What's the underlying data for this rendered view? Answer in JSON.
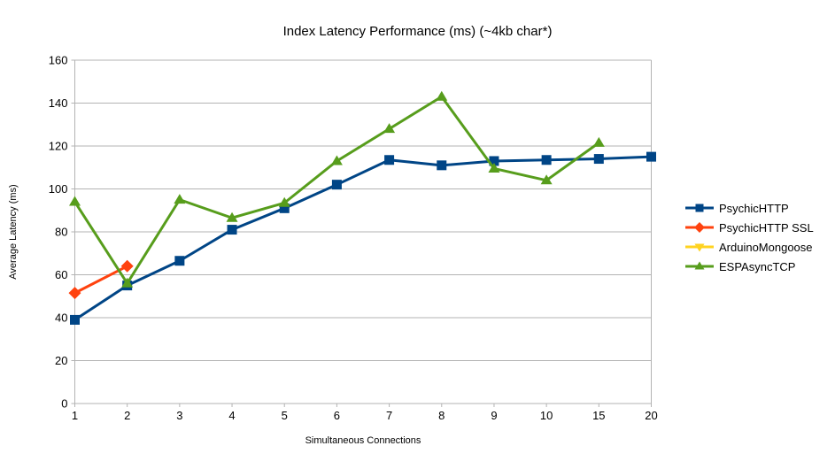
{
  "chart_data": {
    "type": "line",
    "title": "Index Latency Performance (ms) (~4kb char*)",
    "xlabel": "Simultaneous Connections",
    "ylabel": "Average Latency (ms)",
    "categories": [
      "1",
      "2",
      "3",
      "4",
      "5",
      "6",
      "7",
      "8",
      "9",
      "10",
      "15",
      "20"
    ],
    "ylim": [
      0,
      160
    ],
    "yticks": [
      0,
      20,
      40,
      60,
      80,
      100,
      120,
      140,
      160
    ],
    "grid": "horizontal",
    "legend_position": "right",
    "series": [
      {
        "name": "PsychicHTTP",
        "color": "#004586",
        "marker": "square",
        "values": [
          39,
          55,
          66.5,
          81,
          91,
          102,
          113.5,
          111,
          113,
          113.5,
          114,
          115
        ]
      },
      {
        "name": "PsychicHTTP SSL",
        "color": "#FF420E",
        "marker": "diamond",
        "values": [
          51.5,
          64,
          null,
          null,
          null,
          null,
          null,
          null,
          null,
          null,
          null,
          null
        ]
      },
      {
        "name": "ArduinoMongoose",
        "color": "#FFD320",
        "marker": "triangle-down",
        "values": [
          null,
          null,
          null,
          null,
          null,
          null,
          null,
          null,
          null,
          null,
          null,
          null
        ]
      },
      {
        "name": "ESPAsyncTCP",
        "color": "#579D1C",
        "marker": "triangle-up",
        "values": [
          94,
          56,
          95,
          86.5,
          93.5,
          113,
          128,
          143,
          109.5,
          104,
          121.5,
          null
        ]
      }
    ]
  },
  "colors": {
    "grid": "#b3b3b3",
    "axis": "#b3b3b3",
    "text": "#000000",
    "background": "#ffffff"
  }
}
